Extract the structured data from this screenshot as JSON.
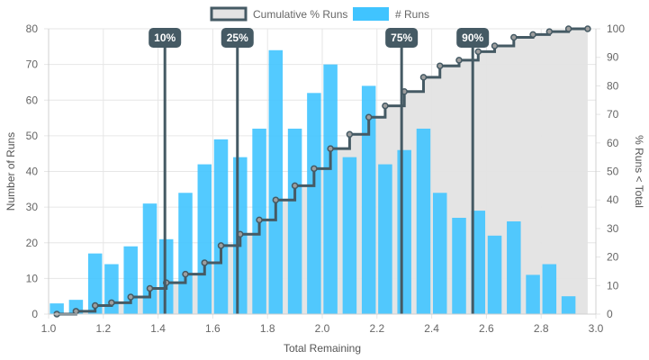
{
  "chart_data": {
    "type": "bar",
    "x_range": [
      1.0,
      3.0
    ],
    "x_ticks": [
      "1.0",
      "1.2",
      "1.4",
      "1.6",
      "1.8",
      "2.0",
      "2.2",
      "2.4",
      "2.6",
      "2.8",
      "3.0"
    ],
    "y_left_range": [
      0,
      80
    ],
    "y_left_ticks": [
      "0",
      "10",
      "20",
      "30",
      "40",
      "50",
      "60",
      "70",
      "80"
    ],
    "y_right_range": [
      0,
      100
    ],
    "y_right_ticks": [
      "0",
      "10",
      "20",
      "30",
      "40",
      "50",
      "60",
      "70",
      "80",
      "90",
      "100"
    ],
    "xlabel": "Total Remaining",
    "ylabel_left": "Number of Runs",
    "ylabel_right": "% Runs < Total",
    "legend": [
      "Cumulative % Runs",
      "# Runs"
    ],
    "legend_position": "top",
    "grid": true,
    "series": [
      {
        "name": "# Runs",
        "axis": "left",
        "color": "#40c4ff",
        "x": [
          1.03,
          1.1,
          1.17,
          1.23,
          1.3,
          1.37,
          1.43,
          1.5,
          1.57,
          1.63,
          1.7,
          1.77,
          1.83,
          1.9,
          1.97,
          2.03,
          2.1,
          2.17,
          2.23,
          2.3,
          2.37,
          2.43,
          2.5,
          2.57,
          2.63,
          2.7,
          2.77,
          2.83,
          2.9
        ],
        "values": [
          3,
          4,
          17,
          14,
          19,
          31,
          21,
          34,
          42,
          49,
          44,
          52,
          74,
          52,
          62,
          70,
          44,
          64,
          42,
          46,
          52,
          34,
          27,
          29,
          22,
          26,
          11,
          14,
          5
        ]
      },
      {
        "name": "Cumulative % Runs",
        "axis": "right",
        "type": "step",
        "color": "#455a64",
        "fill": "#e3e3e3",
        "x": [
          1.03,
          1.1,
          1.17,
          1.23,
          1.3,
          1.37,
          1.43,
          1.5,
          1.57,
          1.63,
          1.7,
          1.77,
          1.83,
          1.9,
          1.97,
          2.03,
          2.1,
          2.17,
          2.23,
          2.3,
          2.37,
          2.43,
          2.5,
          2.57,
          2.63,
          2.7,
          2.77,
          2.83,
          2.9,
          2.97
        ],
        "values": [
          0,
          1,
          3,
          4,
          6,
          9,
          11,
          14,
          18,
          24,
          28,
          33,
          40,
          45,
          51,
          58,
          63,
          69,
          73,
          78,
          83,
          87,
          89,
          92,
          94,
          97,
          98,
          99,
          100,
          100
        ]
      }
    ],
    "percentile_markers": [
      {
        "label": "10%",
        "x": 1.425
      },
      {
        "label": "25%",
        "x": 1.69
      },
      {
        "label": "75%",
        "x": 2.29
      },
      {
        "label": "90%",
        "x": 2.55
      }
    ]
  }
}
